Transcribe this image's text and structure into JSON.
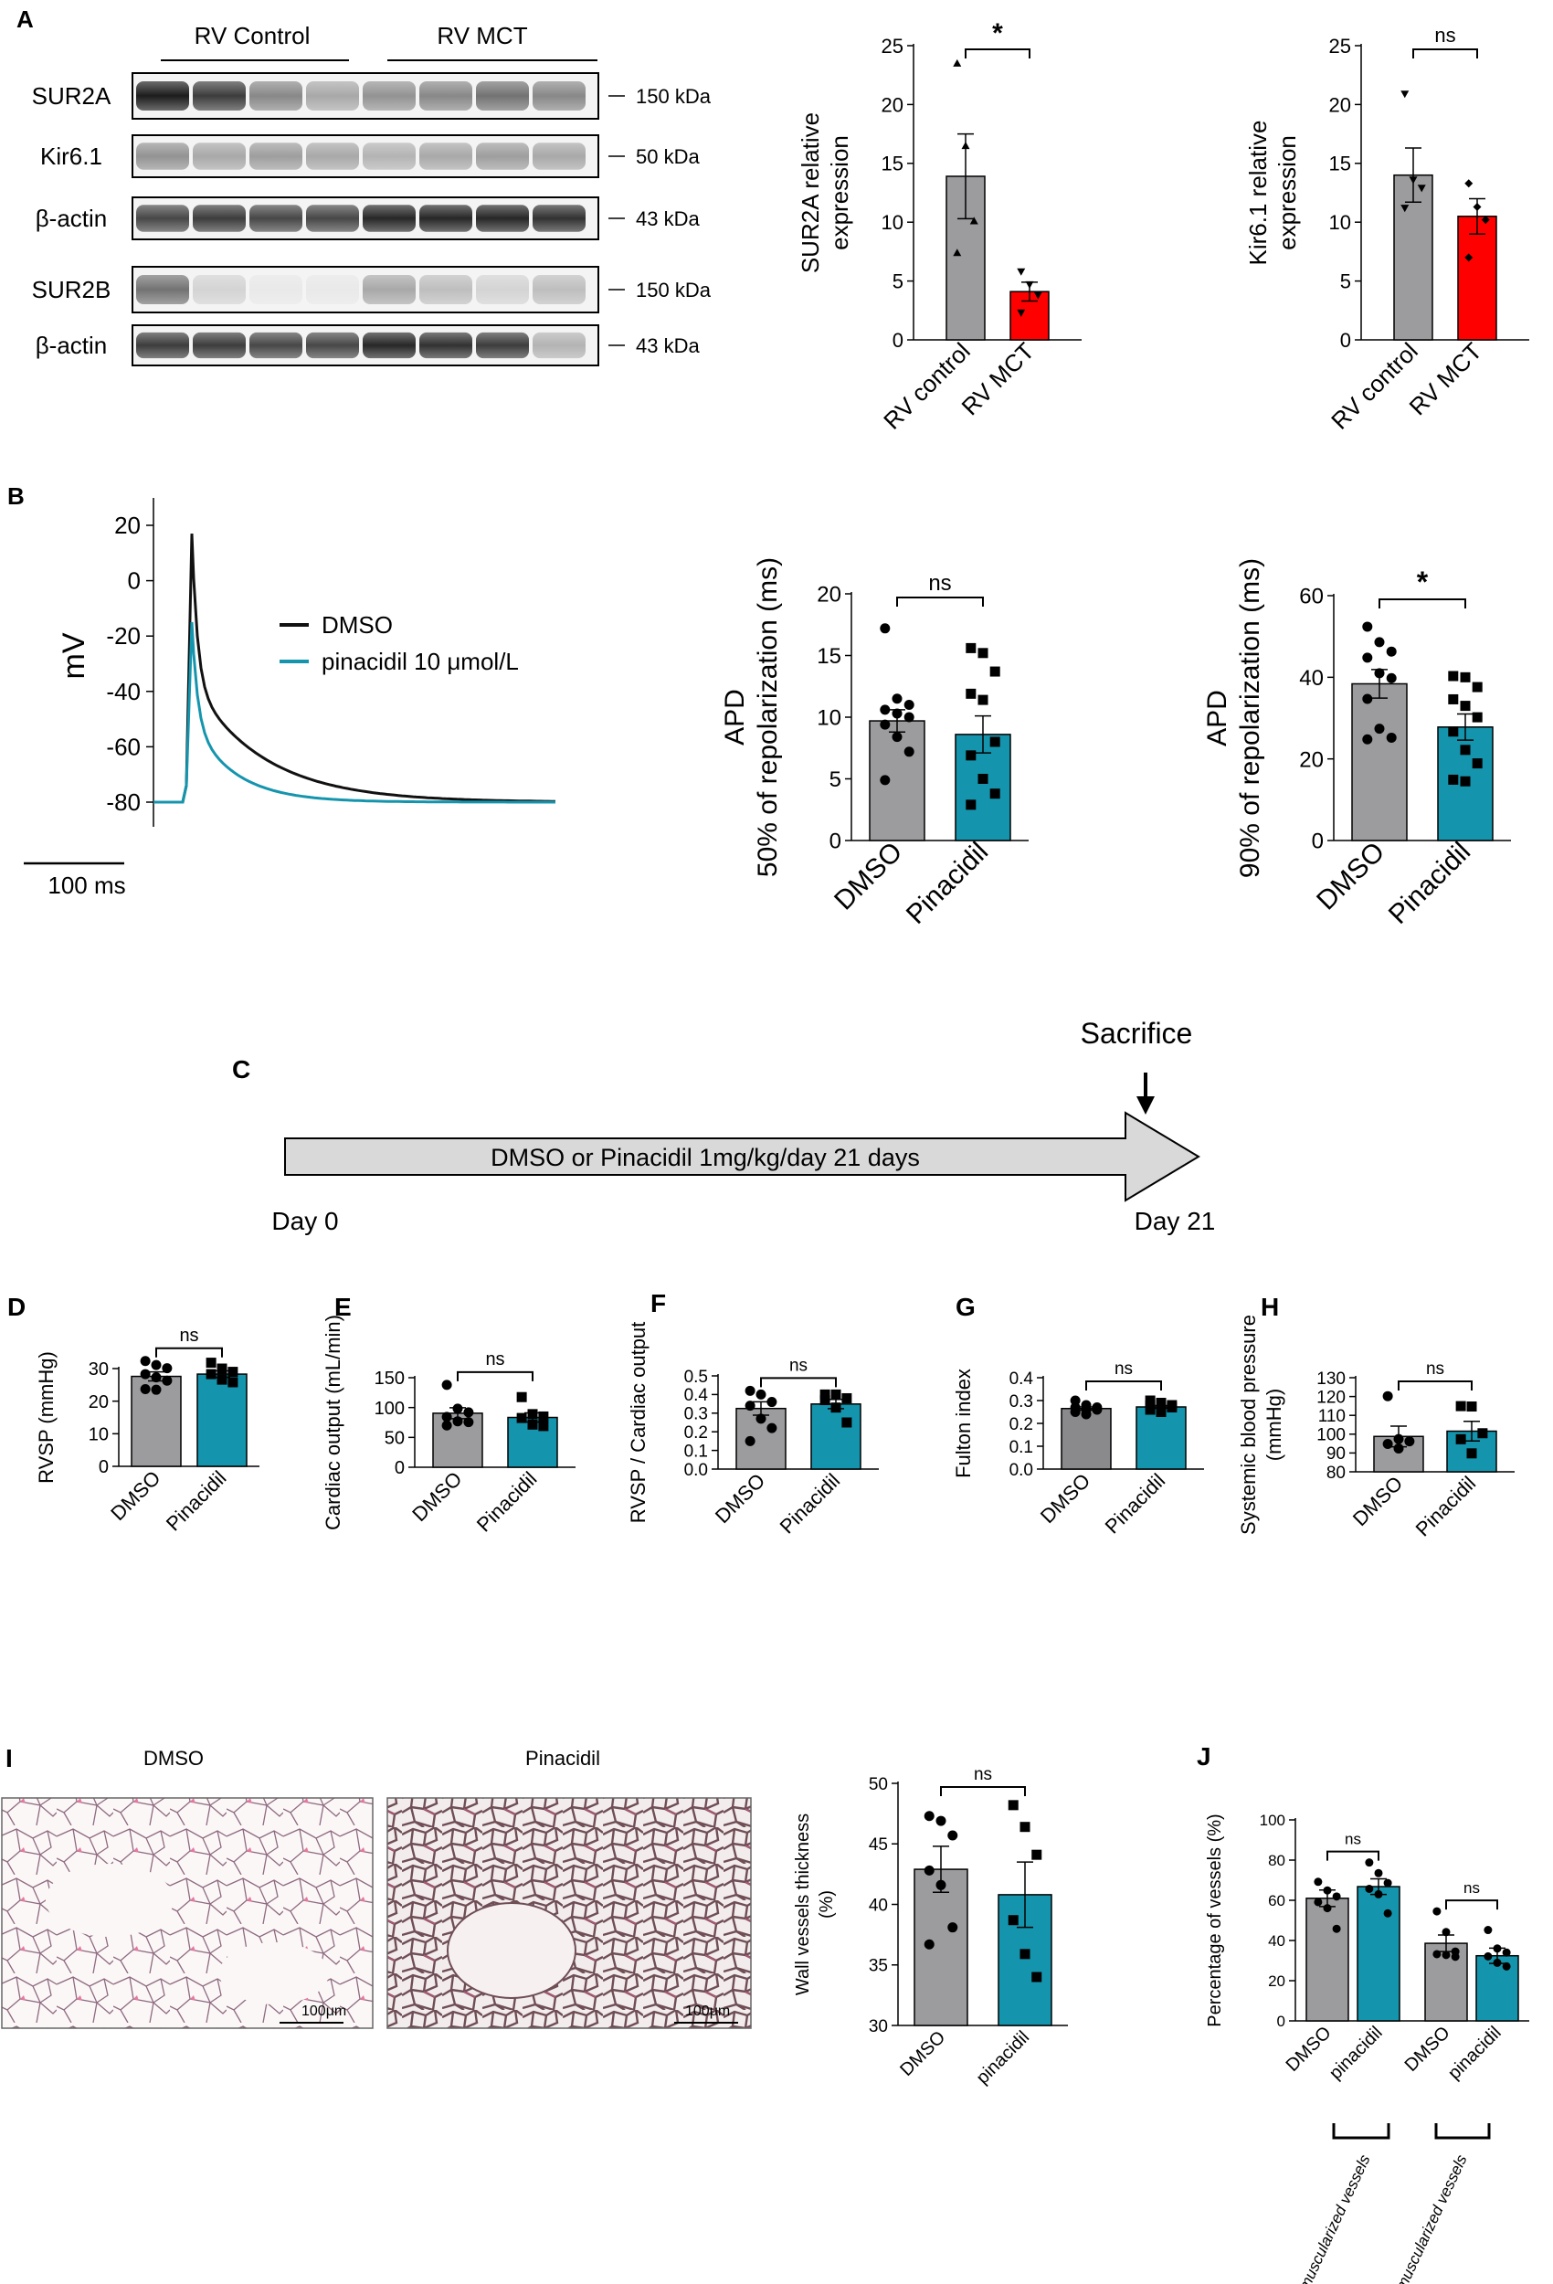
{
  "colors": {
    "grey": "#9c9c9f",
    "red": "#ff0000",
    "teal": "#1595ad",
    "blot_dark": "#2a2a2a",
    "arrow_fill": "#d9d9d9"
  },
  "panels": {
    "A": {
      "letter": "A",
      "group_labels": [
        "RV Control",
        "RV MCT"
      ],
      "blots": [
        {
          "label": "SUR2A",
          "kda": "150 kDa"
        },
        {
          "label": "Kir6.1",
          "kda": "50 kDa"
        },
        {
          "label": "β-actin",
          "kda": "43 kDa"
        },
        {
          "label": "SUR2B",
          "kda": "150 kDa"
        },
        {
          "label": "β-actin",
          "kda": "43 kDa"
        }
      ]
    },
    "B": {
      "letter": "B",
      "trace": {
        "ylabel": "mV",
        "yticks": [
          "20",
          "0",
          "-20",
          "-40",
          "-60",
          "-80"
        ],
        "scale_bar": "100 ms",
        "legend": [
          {
            "name": "DMSO",
            "color": "#111111"
          },
          {
            "name": "pinacidil 10 μmol/L",
            "color": "#1595ad"
          }
        ]
      }
    },
    "C": {
      "letter": "C",
      "arrow_text": "DMSO or Pinacidil 1mg/kg/day 21 days",
      "start": "Day 0",
      "end": "Day 21",
      "event": "Sacrifice"
    },
    "I": {
      "letter": "I",
      "images": [
        {
          "title": "DMSO",
          "scale": "100μm"
        },
        {
          "title": "Pinacidil",
          "scale": "100μm"
        }
      ]
    },
    "J_groups": [
      "non muscularized vessels",
      "muscularized vessels"
    ]
  },
  "chart_data": [
    {
      "id": "A2",
      "type": "bar",
      "ylabel": [
        "SUR2A relative",
        "expression"
      ],
      "categories": [
        "RV control",
        "RV MCT"
      ],
      "values": [
        13.9,
        4.1
      ],
      "errors": [
        3.6,
        0.8
      ],
      "ylim": [
        0,
        25
      ],
      "yticks": [
        0,
        5,
        10,
        15,
        20,
        25
      ],
      "colors": [
        "#9c9c9f",
        "#ff0000"
      ],
      "points": [
        [
          23.5,
          16.5,
          10.1,
          7.4
        ],
        [
          5.8,
          4.7,
          3.8,
          2.3
        ]
      ],
      "markers": [
        "tri",
        "tridown"
      ],
      "sig": "*"
    },
    {
      "id": "A3",
      "type": "bar",
      "ylabel": [
        "Kir6.1 relative",
        "expression"
      ],
      "categories": [
        "RV control",
        "RV MCT"
      ],
      "values": [
        14.0,
        10.5
      ],
      "errors": [
        2.3,
        1.5
      ],
      "ylim": [
        0,
        25
      ],
      "yticks": [
        0,
        5,
        10,
        15,
        20,
        25
      ],
      "colors": [
        "#9c9c9f",
        "#ff0000"
      ],
      "points": [
        [
          20.9,
          13.6,
          12.9,
          11.2
        ],
        [
          13.3,
          11.3,
          10.2,
          7.0
        ]
      ],
      "markers": [
        "tridown",
        "diamond"
      ],
      "sig": "ns"
    },
    {
      "id": "B2",
      "type": "bar",
      "ylabel": [
        "APD",
        "50% of repolarization (ms)"
      ],
      "categories": [
        "DMSO",
        "Pinacidil"
      ],
      "values": [
        9.7,
        8.6
      ],
      "errors": [
        0.9,
        1.5
      ],
      "ylim": [
        0,
        20
      ],
      "yticks": [
        0,
        5,
        10,
        15,
        20
      ],
      "colors": [
        "#9c9c9f",
        "#1595ad"
      ],
      "points": [
        [
          17.2,
          11.5,
          11.0,
          10.6,
          10.3,
          10.0,
          9.4,
          8.4,
          7.2,
          4.9
        ],
        [
          15.6,
          15.2,
          13.7,
          11.9,
          11.4,
          8.0,
          6.9,
          5.0,
          3.8,
          2.9
        ]
      ],
      "markers": [
        "circle",
        "square"
      ],
      "sig": "ns"
    },
    {
      "id": "B3",
      "type": "bar",
      "ylabel": [
        "APD",
        "90% of repolarization (ms)"
      ],
      "categories": [
        "DMSO",
        "Pinacidil"
      ],
      "values": [
        38.4,
        27.8
      ],
      "errors": [
        3.5,
        3.2
      ],
      "ylim": [
        0,
        60
      ],
      "yticks": [
        0,
        20,
        40,
        60
      ],
      "colors": [
        "#9c9c9f",
        "#1595ad"
      ],
      "points": [
        [
          52.4,
          48.6,
          46.3,
          44.8,
          41.0,
          39.8,
          34.7,
          27.4,
          25.2,
          24.8
        ],
        [
          40.3,
          40.0,
          37.6,
          34.6,
          33.0,
          30.2,
          26.7,
          22.2,
          18.9,
          14.9,
          14.5
        ]
      ],
      "markers": [
        "circle",
        "square"
      ],
      "sig": "*"
    },
    {
      "id": "D",
      "type": "bar",
      "ylabel": [
        "RVSP (mmHg)"
      ],
      "categories": [
        "DMSO",
        "Pinacidil"
      ],
      "values": [
        27.6,
        28.3
      ],
      "errors": [
        1.4,
        1.0
      ],
      "ylim": [
        0,
        30
      ],
      "yticks": [
        0,
        10,
        20,
        30
      ],
      "colors": [
        "#9c9c9f",
        "#1595ad"
      ],
      "points": [
        [
          32.3,
          31.1,
          30.1,
          28.3,
          27.3,
          26.3,
          23.7,
          23.5
        ],
        [
          31.8,
          30.0,
          29.0,
          28.3,
          26.6,
          25.8
        ]
      ],
      "markers": [
        "circle",
        "square"
      ],
      "sig": "ns"
    },
    {
      "id": "E",
      "type": "bar",
      "ylabel": [
        "Cardiac output (mL/min)"
      ],
      "categories": [
        "DMSO",
        "Pinacidil"
      ],
      "values": [
        90.5,
        83.4
      ],
      "errors": [
        9.2,
        7.6
      ],
      "ylim": [
        0,
        150
      ],
      "yticks": [
        0,
        50,
        100,
        150
      ],
      "colors": [
        "#9c9c9f",
        "#1595ad"
      ],
      "points": [
        [
          137.9,
          98.1,
          92.1,
          84.4,
          77.0,
          75.6,
          70.0
        ],
        [
          117.5,
          89.0,
          85.0,
          82.5,
          71.5,
          69.0
        ]
      ],
      "markers": [
        "circle",
        "square"
      ],
      "sig": "ns"
    },
    {
      "id": "F",
      "type": "bar",
      "ylabel": [
        "RVSP / Cardiac output"
      ],
      "categories": [
        "DMSO",
        "Pinacidil"
      ],
      "values": [
        0.325,
        0.349
      ],
      "errors": [
        0.036,
        0.025
      ],
      "ylim": [
        0,
        0.5
      ],
      "yticks": [
        0.0,
        0.1,
        0.2,
        0.3,
        0.4,
        0.5
      ],
      "colors": [
        "#9c9c9f",
        "#1595ad"
      ],
      "points": [
        [
          0.42,
          0.4,
          0.36,
          0.34,
          0.27,
          0.22,
          0.15
        ],
        [
          0.4,
          0.4,
          0.38,
          0.37,
          0.33,
          0.25
        ]
      ],
      "markers": [
        "circle",
        "square"
      ],
      "sig": "ns"
    },
    {
      "id": "G",
      "type": "bar",
      "ylabel": [
        "Fulton index"
      ],
      "categories": [
        "DMSO",
        "Pinacidil"
      ],
      "values": [
        0.265,
        0.272
      ],
      "errors": [
        0.007,
        0.006
      ],
      "ylim": [
        0,
        0.4
      ],
      "yticks": [
        0.0,
        0.1,
        0.2,
        0.3,
        0.4
      ],
      "colors": [
        "#8a8a8d",
        "#1595ad"
      ],
      "points": [
        [
          0.3,
          0.28,
          0.27,
          0.27,
          0.26,
          0.26,
          0.25,
          0.24
        ],
        [
          0.3,
          0.29,
          0.28,
          0.28,
          0.27,
          0.27,
          0.26,
          0.25
        ]
      ],
      "markers": [
        "circle",
        "square"
      ],
      "sig": "ns"
    },
    {
      "id": "H",
      "type": "bar",
      "ylabel": [
        "Systemic blood pressure",
        "(mmHg)"
      ],
      "categories": [
        "DMSO",
        "Pinacidil"
      ],
      "values": [
        98.8,
        101.6
      ],
      "errors": [
        5.5,
        5.2
      ],
      "ylim": [
        80,
        130
      ],
      "yticks": [
        80,
        90,
        100,
        110,
        120,
        130
      ],
      "colors": [
        "#9c9c9f",
        "#1595ad"
      ],
      "points": [
        [
          120.2,
          97.4,
          96.2,
          94.8,
          92.4
        ],
        [
          114.9,
          114.7,
          100.5,
          97.3,
          89.8
        ]
      ],
      "markers": [
        "circle",
        "square"
      ],
      "sig": "ns"
    },
    {
      "id": "I3",
      "type": "bar",
      "ylabel": [
        "Wall vessels thickness",
        "(%)"
      ],
      "categories": [
        "DMSO",
        "pinacidil"
      ],
      "values": [
        42.9,
        40.8
      ],
      "errors": [
        1.9,
        2.7
      ],
      "ylim": [
        30,
        50
      ],
      "yticks": [
        30,
        35,
        40,
        45,
        50
      ],
      "colors": [
        "#9c9c9f",
        "#1595ad"
      ],
      "points": [
        [
          47.3,
          46.9,
          45.7,
          42.8,
          41.6,
          38.1,
          36.7
        ],
        [
          48.2,
          46.4,
          44.1,
          38.7,
          35.9,
          34.0
        ]
      ],
      "markers": [
        "circle",
        "square"
      ],
      "sig": "ns"
    },
    {
      "id": "J",
      "type": "bar",
      "ylabel": [
        "Percentage of vessels (%)"
      ],
      "categories": [
        "DMSO",
        "pinacidil",
        "DMSO",
        "pinacidil"
      ],
      "values": [
        61.0,
        66.8,
        38.6,
        32.4
      ],
      "errors": [
        4.1,
        3.9,
        4.1,
        3.8
      ],
      "ylim": [
        0,
        100
      ],
      "yticks": [
        0,
        20,
        40,
        60,
        80,
        100
      ],
      "colors": [
        "#9c9c9f",
        "#1595ad",
        "#9c9c9f",
        "#1595ad"
      ],
      "points": [
        [
          69.2,
          64.9,
          61.9,
          59.1,
          56.1,
          45.8
        ],
        [
          78.8,
          73.5,
          68.6,
          65.7,
          63.0,
          53.5
        ],
        [
          54.5,
          44.2,
          34.5,
          33.2,
          32.8,
          31.9
        ],
        [
          45.2,
          36.0,
          34.0,
          32.1,
          28.9,
          27.1
        ]
      ],
      "markers": [
        "circle",
        "circle",
        "circle",
        "circle"
      ],
      "sig": [
        "ns",
        "ns"
      ]
    }
  ]
}
